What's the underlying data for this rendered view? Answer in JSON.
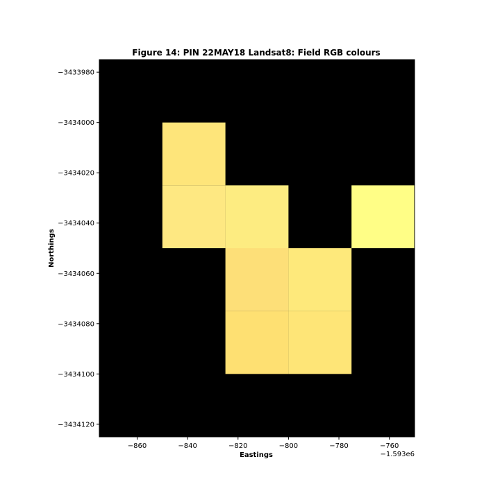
{
  "chart_data": {
    "type": "heatmap",
    "title": "Figure 14: PIN 22MAY18  Landsat8: Field RGB colours",
    "xlabel": "Eastings",
    "ylabel": "Northings",
    "x_offset_label": "−1.593e6",
    "xlim": [
      -875,
      -750
    ],
    "ylim": [
      -3434125,
      -3433975
    ],
    "x_ticks": [
      -860,
      -840,
      -820,
      -800,
      -780,
      -760
    ],
    "x_tick_labels": [
      "−860",
      "−840",
      "−820",
      "−800",
      "−780",
      "−760"
    ],
    "y_ticks": [
      -3433980,
      -3434000,
      -3434020,
      -3434040,
      -3434060,
      -3434080,
      -3434100,
      -3434120
    ],
    "y_tick_labels": [
      "−3433980",
      "−3434000",
      "−3434020",
      "−3434040",
      "−3434060",
      "−3434080",
      "−3434100",
      "−3434120"
    ],
    "background_color": "#000000",
    "grid": false,
    "cells": [
      {
        "x0": -850,
        "x1": -825,
        "y0": -3434025,
        "y1": -3434000,
        "color": "#fee57a"
      },
      {
        "x0": -850,
        "x1": -825,
        "y0": -3434050,
        "y1": -3434025,
        "color": "#fee882"
      },
      {
        "x0": -825,
        "x1": -800,
        "y0": -3434050,
        "y1": -3434025,
        "color": "#fdec81"
      },
      {
        "x0": -775,
        "x1": -750,
        "y0": -3434050,
        "y1": -3434025,
        "color": "#fffe86"
      },
      {
        "x0": -825,
        "x1": -800,
        "y0": -3434075,
        "y1": -3434050,
        "color": "#fddf78"
      },
      {
        "x0": -800,
        "x1": -775,
        "y0": -3434075,
        "y1": -3434050,
        "color": "#fee97b"
      },
      {
        "x0": -825,
        "x1": -800,
        "y0": -3434100,
        "y1": -3434075,
        "color": "#fee072"
      },
      {
        "x0": -800,
        "x1": -775,
        "y0": -3434100,
        "y1": -3434075,
        "color": "#fee577"
      }
    ]
  }
}
